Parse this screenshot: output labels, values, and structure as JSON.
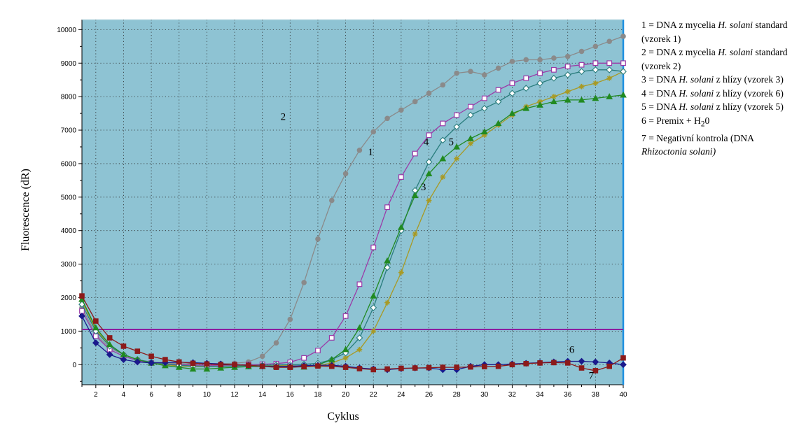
{
  "chart_data": {
    "type": "line",
    "title": "",
    "xlabel": "Cyklus",
    "ylabel": "Fluorescence (dR)",
    "xlim": [
      1,
      40
    ],
    "ylim": [
      -600,
      10300
    ],
    "x_ticks": [
      2,
      4,
      6,
      8,
      10,
      12,
      14,
      16,
      18,
      20,
      22,
      24,
      26,
      28,
      30,
      32,
      34,
      36,
      38,
      40
    ],
    "y_ticks": [
      0,
      1000,
      2000,
      3000,
      4000,
      5000,
      6000,
      7000,
      8000,
      9000,
      10000
    ],
    "grid": true,
    "plot_background": "#8ec3d3",
    "threshold": {
      "value": 1050,
      "color": "#8a1fa0"
    },
    "curve_labels": [
      {
        "text": "1",
        "x": 21.8,
        "y": 6250
      },
      {
        "text": "2",
        "x": 15.5,
        "y": 7300
      },
      {
        "text": "3",
        "x": 25.6,
        "y": 5200
      },
      {
        "text": "4",
        "x": 25.8,
        "y": 6550
      },
      {
        "text": "5",
        "x": 27.6,
        "y": 6550
      },
      {
        "text": "6",
        "x": 36.3,
        "y": 350
      },
      {
        "text": "7",
        "x": 37.7,
        "y": -420
      }
    ],
    "series": [
      {
        "color": "#8a8a8a",
        "marker": "circle",
        "x": [
          1,
          2,
          3,
          4,
          5,
          6,
          7,
          8,
          9,
          10,
          11,
          12,
          13,
          14,
          15,
          16,
          17,
          18,
          19,
          20,
          21,
          22,
          23,
          24,
          25,
          26,
          27,
          28,
          29,
          30,
          31,
          32,
          33,
          34,
          35,
          36,
          37,
          38,
          39,
          40
        ],
        "values": [
          1700,
          900,
          500,
          300,
          150,
          80,
          50,
          30,
          20,
          20,
          30,
          40,
          80,
          250,
          650,
          1350,
          2450,
          3750,
          4900,
          5700,
          6400,
          6950,
          7350,
          7600,
          7850,
          8100,
          8350,
          8700,
          8750,
          8650,
          8850,
          9050,
          9100,
          9100,
          9150,
          9200,
          9350,
          9500,
          9650,
          9800
        ]
      },
      {
        "color": "#9b3ba8",
        "marker": "open-square",
        "x": [
          1,
          2,
          3,
          4,
          5,
          6,
          7,
          8,
          9,
          10,
          11,
          12,
          13,
          14,
          15,
          16,
          17,
          18,
          19,
          20,
          21,
          22,
          23,
          24,
          25,
          26,
          27,
          28,
          29,
          30,
          31,
          32,
          33,
          34,
          35,
          36,
          37,
          38,
          39,
          40
        ],
        "values": [
          1600,
          850,
          450,
          250,
          120,
          50,
          20,
          0,
          -10,
          -20,
          -20,
          -10,
          0,
          10,
          30,
          70,
          200,
          420,
          800,
          1450,
          2400,
          3500,
          4700,
          5600,
          6300,
          6850,
          7200,
          7450,
          7700,
          7950,
          8200,
          8400,
          8550,
          8700,
          8800,
          8900,
          8950,
          9000,
          9000,
          9000
        ]
      },
      {
        "color": "#a89a24",
        "marker": "star",
        "x": [
          1,
          2,
          3,
          4,
          5,
          6,
          7,
          8,
          9,
          10,
          11,
          12,
          13,
          14,
          15,
          16,
          17,
          18,
          19,
          20,
          21,
          22,
          23,
          24,
          25,
          26,
          27,
          28,
          29,
          30,
          31,
          32,
          33,
          34,
          35,
          36,
          37,
          38,
          39,
          40
        ],
        "values": [
          1900,
          1050,
          550,
          300,
          150,
          60,
          0,
          -40,
          -60,
          -60,
          -50,
          -40,
          -30,
          -20,
          -20,
          -30,
          -50,
          -30,
          50,
          200,
          450,
          1000,
          1850,
          2750,
          3900,
          4900,
          5600,
          6150,
          6600,
          6850,
          7150,
          7450,
          7700,
          7850,
          8000,
          8150,
          8300,
          8400,
          8550,
          8750
        ]
      },
      {
        "color": "#2a7d7d",
        "marker": "open-diamond",
        "x": [
          1,
          2,
          3,
          4,
          5,
          6,
          7,
          8,
          9,
          10,
          11,
          12,
          13,
          14,
          15,
          16,
          17,
          18,
          19,
          20,
          21,
          22,
          23,
          24,
          25,
          26,
          27,
          28,
          29,
          30,
          31,
          32,
          33,
          34,
          35,
          36,
          37,
          38,
          39,
          40
        ],
        "values": [
          1800,
          1000,
          550,
          300,
          150,
          70,
          20,
          -20,
          -40,
          -50,
          -50,
          -40,
          -30,
          -20,
          -10,
          0,
          10,
          40,
          150,
          350,
          800,
          1700,
          2900,
          4000,
          5200,
          6050,
          6700,
          7100,
          7450,
          7650,
          7850,
          8100,
          8250,
          8400,
          8550,
          8650,
          8750,
          8800,
          8800,
          8750
        ]
      },
      {
        "color": "#218a21",
        "marker": "triangle",
        "x": [
          1,
          2,
          3,
          4,
          5,
          6,
          7,
          8,
          9,
          10,
          11,
          12,
          13,
          14,
          15,
          16,
          17,
          18,
          19,
          20,
          21,
          22,
          23,
          24,
          25,
          26,
          27,
          28,
          29,
          30,
          31,
          32,
          33,
          34,
          35,
          36,
          37,
          38,
          39,
          40
        ],
        "values": [
          1950,
          1100,
          600,
          300,
          150,
          50,
          -30,
          -80,
          -130,
          -130,
          -100,
          -80,
          -60,
          -50,
          -50,
          -60,
          -70,
          -10,
          150,
          450,
          1100,
          2050,
          3100,
          4100,
          5050,
          5700,
          6150,
          6500,
          6750,
          6950,
          7200,
          7500,
          7650,
          7750,
          7850,
          7900,
          7900,
          7950,
          8000,
          8050
        ]
      },
      {
        "color": "#1a1a8c",
        "marker": "diamond",
        "x": [
          1,
          2,
          3,
          4,
          5,
          6,
          7,
          8,
          9,
          10,
          11,
          12,
          13,
          14,
          15,
          16,
          17,
          18,
          19,
          20,
          21,
          22,
          23,
          24,
          25,
          26,
          27,
          28,
          29,
          30,
          31,
          32,
          33,
          34,
          35,
          36,
          37,
          38,
          39,
          40
        ],
        "values": [
          1450,
          650,
          300,
          150,
          80,
          50,
          60,
          70,
          60,
          40,
          20,
          0,
          -20,
          -50,
          -60,
          -50,
          -30,
          -20,
          -20,
          -50,
          -100,
          -130,
          -150,
          -120,
          -100,
          -100,
          -150,
          -150,
          -50,
          0,
          0,
          20,
          40,
          60,
          80,
          100,
          100,
          80,
          50,
          0
        ]
      },
      {
        "color": "#8c1a1a",
        "marker": "square",
        "x": [
          1,
          2,
          3,
          4,
          5,
          6,
          7,
          8,
          9,
          10,
          11,
          12,
          13,
          14,
          15,
          16,
          17,
          18,
          19,
          20,
          21,
          22,
          23,
          24,
          25,
          26,
          27,
          28,
          29,
          30,
          31,
          32,
          33,
          34,
          35,
          36,
          37,
          38,
          39,
          40
        ],
        "values": [
          2050,
          1300,
          800,
          550,
          400,
          250,
          150,
          80,
          40,
          20,
          0,
          0,
          -20,
          -50,
          -80,
          -80,
          -60,
          -40,
          -50,
          -80,
          -120,
          -150,
          -130,
          -110,
          -100,
          -90,
          -80,
          -80,
          -70,
          -60,
          -50,
          0,
          30,
          50,
          60,
          50,
          -100,
          -180,
          -50,
          200
        ]
      }
    ]
  },
  "legend": {
    "entries": [
      {
        "num": "1",
        "rich": "DNA z mycelia <i>H. solani</i> standard (vzorek 1)"
      },
      {
        "num": "2",
        "rich": "DNA z mycelia <i>H. solani</i> standard (vzorek 2)"
      },
      {
        "num": "3",
        "rich": "DNA <i>H. solani</i> z hlízy (vzorek 3)"
      },
      {
        "num": "4",
        "rich": "DNA <i>H. solani</i> z hlízy (vzorek 6)"
      },
      {
        "num": "5",
        "rich": "DNA <i>H. solani</i> z hlízy (vzorek 5)"
      },
      {
        "num": "6",
        "rich": "Premix + H<sub>2</sub>0"
      },
      {
        "num": "7",
        "rich": "Negativní kontrola (DNA <i>Rhizoctonia solani)</i>"
      }
    ]
  }
}
